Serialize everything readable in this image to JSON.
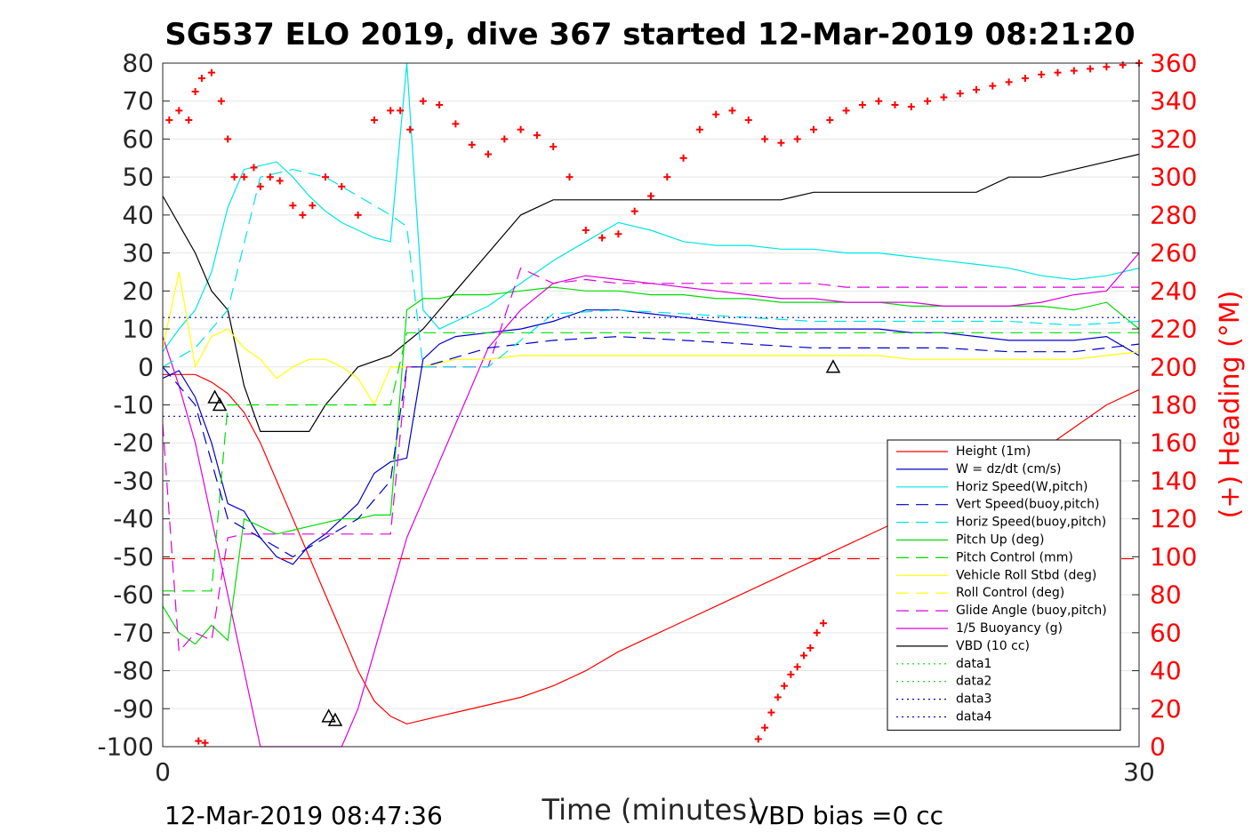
{
  "chart_data": {
    "type": "line",
    "title": "SG537 ELO 2019, dive 367 started 12-Mar-2019 08:21:20",
    "xlabel": "Time (minutes)",
    "ylabel_right": "(+) Heading (°M)",
    "xlim": [
      0,
      30
    ],
    "ylim_left": [
      -100,
      80
    ],
    "ylim_right": [
      0,
      360
    ],
    "x_ticks": [
      "0",
      "30"
    ],
    "y_ticks_left": [
      "80",
      "70",
      "60",
      "50",
      "40",
      "30",
      "20",
      "10",
      "0",
      "-10",
      "-20",
      "-30",
      "-40",
      "-50",
      "-60",
      "-70",
      "-80",
      "-90",
      "-100"
    ],
    "y_ticks_right": [
      "360",
      "340",
      "320",
      "300",
      "280",
      "260",
      "240",
      "220",
      "200",
      "180",
      "160",
      "140",
      "120",
      "100",
      "80",
      "60",
      "40",
      "20",
      "0"
    ],
    "grid": "horizontal",
    "legend_position": "lower-right",
    "footer_left": "12-Mar-2019 08:47:36",
    "footer_right": "VBD bias =0 cc",
    "colors": {
      "red": "#ff0000",
      "blue": "#0000cc",
      "cyan": "#00e5e5",
      "green": "#00dd00",
      "yellow": "#ffff00",
      "magenta": "#dd00dd",
      "black": "#000000"
    },
    "legend": [
      {
        "label": "Height (1m)",
        "color": "#ff0000",
        "dash": "solid"
      },
      {
        "label": "W = dz/dt (cm/s)",
        "color": "#0000cc",
        "dash": "solid"
      },
      {
        "label": "Horiz Speed(W,pitch)",
        "color": "#00e5e5",
        "dash": "solid"
      },
      {
        "label": "Vert Speed(buoy,pitch)",
        "color": "#0000cc",
        "dash": "dashed"
      },
      {
        "label": "Horiz Speed(buoy,pitch)",
        "color": "#00e5e5",
        "dash": "dashed"
      },
      {
        "label": "Pitch Up (deg)",
        "color": "#00dd00",
        "dash": "solid"
      },
      {
        "label": "Pitch Control (mm)",
        "color": "#00dd00",
        "dash": "dashed"
      },
      {
        "label": "Vehicle Roll Stbd (deg)",
        "color": "#ffff00",
        "dash": "solid"
      },
      {
        "label": "Roll Control (deg)",
        "color": "#ffff00",
        "dash": "dashed"
      },
      {
        "label": "Glide Angle (buoy,pitch)",
        "color": "#dd00dd",
        "dash": "dashed"
      },
      {
        "label": "1/5 Buoyancy (g)",
        "color": "#dd00dd",
        "dash": "solid"
      },
      {
        "label": "VBD (10 cc)",
        "color": "#000000",
        "dash": "solid"
      },
      {
        "label": "data1",
        "color": "#00dd00",
        "dash": "dotted"
      },
      {
        "label": "data2",
        "color": "#00dd00",
        "dash": "dotted"
      },
      {
        "label": "data3",
        "color": "#0000cc",
        "dash": "dotted"
      },
      {
        "label": "data4",
        "color": "#0000cc",
        "dash": "dotted"
      }
    ],
    "series": [
      {
        "name": "Height (1m)",
        "color": "#ff0000",
        "dash": "solid",
        "x": [
          0,
          1,
          1.5,
          2,
          2.5,
          3,
          3.5,
          4,
          4.5,
          5,
          5.5,
          6,
          6.5,
          7,
          7.5,
          8,
          9,
          10,
          11,
          12,
          13,
          14,
          15,
          16,
          17,
          18,
          19,
          20,
          21,
          22,
          23,
          24,
          25,
          26,
          27,
          28,
          29,
          30
        ],
        "y": [
          -2,
          -2,
          -4,
          -7,
          -12,
          -20,
          -30,
          -40,
          -50,
          -60,
          -70,
          -80,
          -88,
          -92,
          -94,
          -93,
          -91,
          -89,
          -87,
          -84,
          -80,
          -75,
          -71,
          -67,
          -63,
          -59,
          -55,
          -51,
          -47,
          -43,
          -39,
          -35,
          -31,
          -27,
          -22,
          -16,
          -10,
          -6
        ]
      },
      {
        "name": "W = dz/dt (cm/s)",
        "color": "#0000cc",
        "dash": "solid",
        "x": [
          0,
          0.5,
          1,
          1.5,
          2,
          2.5,
          3,
          3.5,
          4,
          4.5,
          5,
          5.5,
          6,
          6.5,
          7,
          7.5,
          8,
          8.5,
          9,
          10,
          11,
          12,
          13,
          14,
          15,
          16,
          17,
          18,
          19,
          20,
          21,
          22,
          23,
          24,
          25,
          26,
          27,
          28,
          29,
          30
        ],
        "y": [
          -3,
          -1,
          -8,
          -20,
          -36,
          -38,
          -45,
          -50,
          -52,
          -47,
          -44,
          -40,
          -36,
          -28,
          -25,
          -24,
          2,
          6,
          8,
          9,
          10,
          12,
          15,
          15,
          14,
          13,
          12,
          11,
          10,
          10,
          10,
          10,
          9,
          9,
          8,
          7,
          7,
          7,
          8,
          3
        ]
      },
      {
        "name": "Horiz Speed(W,pitch)",
        "color": "#00e5e5",
        "dash": "solid",
        "x": [
          0,
          0.5,
          1,
          1.5,
          2,
          2.5,
          3,
          3.5,
          4,
          4.5,
          5,
          5.5,
          6,
          6.5,
          7,
          7.5,
          8,
          8.5,
          9,
          10,
          11,
          12,
          13,
          14,
          15,
          16,
          17,
          18,
          19,
          20,
          21,
          22,
          23,
          24,
          25,
          26,
          27,
          28,
          29,
          30
        ],
        "y": [
          4,
          10,
          15,
          25,
          42,
          52,
          53,
          54,
          50,
          45,
          41,
          38,
          36,
          34,
          33,
          80,
          15,
          10,
          12,
          16,
          22,
          28,
          33,
          38,
          36,
          33,
          32,
          32,
          31,
          31,
          30,
          30,
          29,
          28,
          27,
          26,
          24,
          23,
          24,
          26
        ]
      },
      {
        "name": "Pitch Up (deg)",
        "color": "#00dd00",
        "dash": "solid",
        "x": [
          0,
          0.5,
          1,
          1.5,
          2,
          2.5,
          3,
          3.5,
          4,
          4.5,
          5,
          5.5,
          6,
          6.5,
          7,
          7.5,
          8,
          8.5,
          9,
          10,
          11,
          12,
          13,
          14,
          15,
          16,
          17,
          18,
          19,
          20,
          21,
          22,
          23,
          24,
          25,
          26,
          27,
          28,
          29,
          30
        ],
        "y": [
          -63,
          -70,
          -73,
          -68,
          -72,
          -40,
          -42,
          -44,
          -43,
          -42,
          -41,
          -40,
          -40,
          -39,
          -39,
          15,
          18,
          18,
          19,
          19,
          20,
          21,
          20,
          20,
          19,
          19,
          18,
          18,
          17,
          17,
          17,
          17,
          16,
          16,
          16,
          16,
          16,
          15,
          17,
          10
        ]
      },
      {
        "name": "1/5 Buoyancy (g)",
        "color": "#dd00dd",
        "dash": "solid",
        "x": [
          0,
          0.5,
          1,
          1.5,
          2,
          2.5,
          3,
          3.5,
          4,
          4.5,
          5,
          5.5,
          6,
          6.5,
          7,
          7.5,
          8,
          9,
          10,
          11,
          12,
          13,
          14,
          15,
          16,
          17,
          18,
          19,
          20,
          21,
          22,
          23,
          24,
          25,
          26,
          27,
          28,
          29,
          30
        ],
        "y": [
          8,
          -5,
          -20,
          -40,
          -60,
          -80,
          -100,
          -100,
          -100,
          -100,
          -100,
          -100,
          -90,
          -75,
          -60,
          -45,
          -35,
          -15,
          5,
          15,
          22,
          24,
          23,
          22,
          21,
          20,
          19,
          18,
          18,
          17,
          17,
          17,
          16,
          16,
          16,
          17,
          19,
          20,
          30
        ]
      },
      {
        "name": "VBD (10 cc)",
        "color": "#000000",
        "dash": "solid",
        "x": [
          0,
          1,
          1.5,
          2,
          2.5,
          3,
          3.5,
          4,
          4.5,
          5,
          6,
          7,
          8,
          9,
          10,
          11,
          12,
          13,
          14,
          15,
          16,
          17,
          18,
          19,
          20,
          21,
          22,
          23,
          24,
          25,
          26,
          27,
          28,
          29,
          30
        ],
        "y": [
          45,
          30,
          20,
          15,
          -5,
          -17,
          -17,
          -17,
          -17,
          -10,
          0,
          3,
          10,
          20,
          30,
          40,
          44,
          44,
          44,
          44,
          44,
          44,
          44,
          44,
          46,
          46,
          46,
          46,
          46,
          46,
          50,
          50,
          52,
          54,
          56
        ]
      },
      {
        "name": "Vehicle Roll Stbd (deg)",
        "color": "#ffff00",
        "dash": "solid",
        "x": [
          0,
          0.5,
          1,
          1.5,
          2,
          2.5,
          3,
          3.5,
          4,
          4.5,
          5,
          5.5,
          6,
          6.5,
          7,
          7.5,
          8,
          9,
          10,
          11,
          12,
          13,
          14,
          15,
          16,
          17,
          18,
          19,
          20,
          21,
          22,
          23,
          24,
          25,
          26,
          27,
          28,
          29,
          30
        ],
        "y": [
          5,
          25,
          0,
          8,
          10,
          5,
          2,
          -3,
          0,
          2,
          2,
          0,
          -3,
          -10,
          0,
          0,
          0,
          2,
          2,
          3,
          3,
          3,
          3,
          3,
          3,
          3,
          3,
          3,
          3,
          3,
          3,
          2,
          2,
          2,
          2,
          2,
          2,
          3,
          4
        ]
      },
      {
        "name": "Glide Angle (buoy,pitch)",
        "color": "#dd00dd",
        "dash": "dashed",
        "x": [
          0,
          0.5,
          1,
          1.5,
          2,
          2.5,
          3,
          3.5,
          4,
          7,
          7.5,
          8,
          9,
          10,
          11,
          12,
          13,
          14,
          15,
          16,
          17,
          18,
          19,
          20,
          21,
          22,
          23,
          24,
          25,
          26,
          27,
          28,
          29,
          30
        ],
        "y": [
          -15,
          -75,
          -70,
          -72,
          -45,
          -44,
          -44,
          -44,
          -44,
          -44,
          0,
          0,
          0,
          0,
          26,
          22,
          23,
          22,
          22,
          22,
          22,
          22,
          22,
          22,
          21,
          21,
          21,
          21,
          21,
          21,
          21,
          21,
          21,
          21
        ]
      },
      {
        "name": "Pitch Control (mm)",
        "color": "#00dd00",
        "dash": "dashed",
        "x": [
          0,
          1,
          1.5,
          2,
          2.5,
          3,
          4,
          7,
          7.5,
          8,
          30
        ],
        "y": [
          -59,
          -59,
          -59,
          -10,
          -10,
          -10,
          -10,
          -10,
          9,
          9,
          9
        ]
      },
      {
        "name": "Vert Speed(buoy,pitch)",
        "color": "#0000cc",
        "dash": "dashed",
        "x": [
          0,
          1,
          2,
          3,
          4,
          5,
          6,
          7,
          7.5,
          8,
          10,
          12,
          14,
          16,
          18,
          20,
          22,
          24,
          26,
          28,
          30
        ],
        "y": [
          0,
          -10,
          -40,
          -45,
          -50,
          -45,
          -40,
          -30,
          0,
          0,
          5,
          7,
          8,
          7,
          6,
          5,
          5,
          5,
          4,
          4,
          6
        ]
      },
      {
        "name": "Horiz Speed(buoy,pitch)",
        "color": "#00e5e5",
        "dash": "dashed",
        "x": [
          0,
          1,
          2,
          3,
          4,
          5,
          6,
          7,
          7.5,
          8,
          10,
          12,
          14,
          16,
          18,
          20,
          22,
          24,
          26,
          28,
          30
        ],
        "y": [
          0,
          5,
          15,
          50,
          52,
          50,
          45,
          40,
          37,
          0,
          0,
          14,
          15,
          14,
          13,
          12,
          12,
          12,
          12,
          11,
          12
        ]
      },
      {
        "name": "data3",
        "color": "#0000cc",
        "dash": "dotted",
        "x": [
          0,
          30
        ],
        "y": [
          13,
          13
        ]
      },
      {
        "name": "data4",
        "color": "#0000cc",
        "dash": "dotted",
        "x": [
          0,
          30
        ],
        "y": [
          -13,
          -13
        ]
      },
      {
        "name": "Height ref",
        "color": "#ff0000",
        "dash": "dashed",
        "x": [
          0,
          30
        ],
        "y": [
          -50.5,
          -50.5
        ]
      }
    ],
    "heading_points": {
      "color": "#ff0000",
      "x": [
        0.2,
        0.5,
        0.8,
        1.0,
        1.2,
        1.5,
        1.8,
        2.0,
        2.2,
        2.5,
        2.8,
        3.0,
        3.3,
        3.6,
        4.0,
        4.3,
        4.6,
        5.0,
        5.5,
        6.0,
        6.5,
        7.0,
        7.3,
        7.6,
        8.0,
        8.5,
        9.0,
        9.5,
        10.0,
        10.5,
        11.0,
        11.5,
        12.0,
        12.5,
        13.0,
        13.5,
        14.0,
        14.5,
        15.0,
        15.5,
        16.0,
        16.5,
        17.0,
        17.5,
        18.0,
        18.5,
        19.0,
        19.5,
        20.0,
        20.5,
        21.0,
        21.5,
        22.0,
        22.5,
        23.0,
        23.5,
        24.0,
        24.5,
        25.0,
        25.5,
        26.0,
        26.5,
        27.0,
        27.5,
        28.0,
        28.5,
        29.0,
        29.5,
        30.0
      ],
      "y": [
        330,
        335,
        330,
        345,
        352,
        355,
        340,
        320,
        300,
        300,
        305,
        295,
        300,
        298,
        285,
        280,
        285,
        300,
        295,
        280,
        330,
        335,
        335,
        325,
        340,
        338,
        328,
        317,
        312,
        320,
        325,
        322,
        316,
        300,
        272,
        268,
        270,
        282,
        290,
        300,
        310,
        325,
        333,
        335,
        330,
        320,
        318,
        320,
        325,
        330,
        335,
        338,
        340,
        338,
        337,
        340,
        342,
        344,
        346,
        348,
        350,
        352,
        354,
        355,
        356,
        357,
        358,
        359,
        360
      ]
    },
    "heading_points_low": {
      "x": [
        1.1,
        1.3,
        18.3,
        18.5,
        18.7,
        18.9,
        19.1,
        19.3,
        19.5,
        19.7,
        19.9,
        20.1,
        20.3
      ],
      "y": [
        3,
        2,
        4,
        10,
        18,
        26,
        32,
        38,
        42,
        48,
        52,
        60,
        65
      ]
    },
    "markers": [
      {
        "x": 1.6,
        "y": -8,
        "symbol": "triangle"
      },
      {
        "x": 1.75,
        "y": -10,
        "symbol": "triangle"
      },
      {
        "x": 5.1,
        "y": -92,
        "symbol": "triangle"
      },
      {
        "x": 5.3,
        "y": -93,
        "symbol": "triangle"
      },
      {
        "x": 20.6,
        "y": 0,
        "symbol": "triangle"
      }
    ]
  }
}
